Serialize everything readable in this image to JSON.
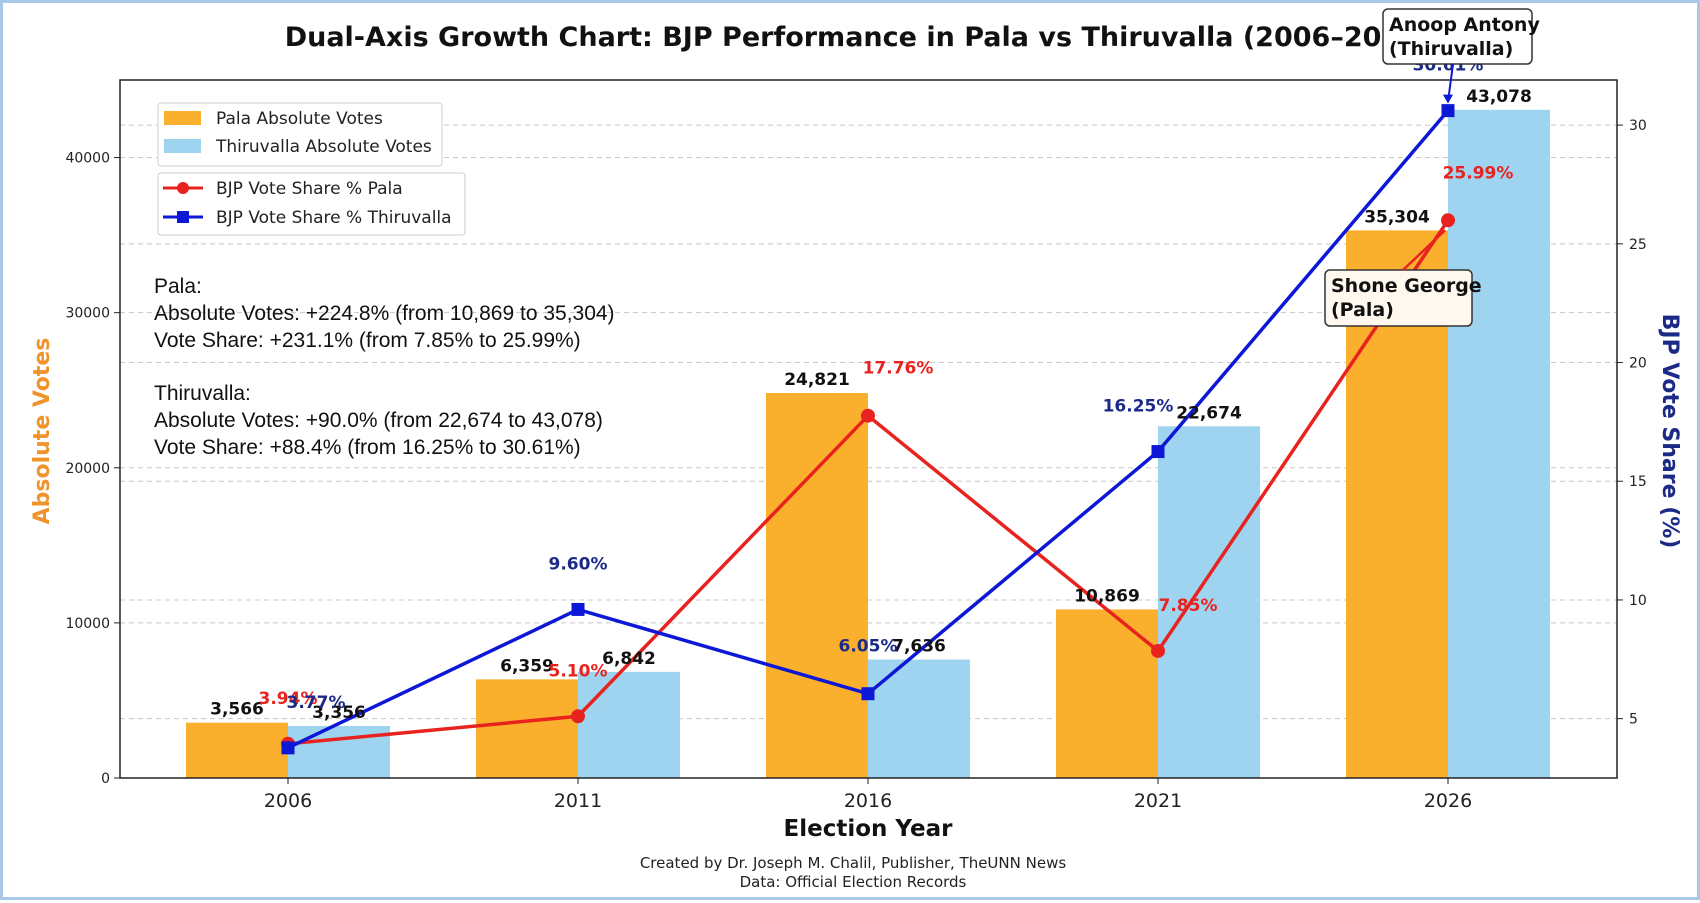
{
  "chart_data": {
    "type": "bar",
    "title": "Dual-Axis Growth Chart: BJP Performance in Pala vs Thiruvalla (2006–2026)",
    "xlabel": "Election Year",
    "ylabel": "Absolute Votes",
    "ylabel_right": "BJP Vote Share (%)",
    "categories": [
      "2006",
      "2011",
      "2016",
      "2021",
      "2026"
    ],
    "ylim": [
      0,
      45000
    ],
    "ylim_right": [
      2.5,
      31.9
    ],
    "yticks": [
      "0",
      "10000",
      "20000",
      "30000",
      "40000"
    ],
    "yticks_values": [
      0,
      10000,
      20000,
      30000,
      40000
    ],
    "yticks_right": [
      "5",
      "10",
      "15",
      "20",
      "25",
      "30"
    ],
    "yticks_right_values": [
      5,
      10,
      15,
      20,
      25,
      30
    ],
    "grid": "horizontal dashed",
    "series": [
      {
        "name": "Pala Absolute Votes",
        "kind": "bar",
        "color": "#fbb02d",
        "values": [
          3566,
          6359,
          24821,
          10869,
          35304
        ],
        "labels": [
          "3,566",
          "6,359",
          "24,821",
          "10,869",
          "35,304"
        ]
      },
      {
        "name": "Thiruvalla Absolute Votes",
        "kind": "bar",
        "color": "#9ed4ef",
        "values": [
          3356,
          6842,
          7636,
          22674,
          43078
        ],
        "labels": [
          "3,356",
          "6,842",
          "7,636",
          "22,674",
          "43,078"
        ]
      },
      {
        "name": "BJP Vote Share % Pala",
        "kind": "line",
        "axis": "right",
        "color": "#e8231f",
        "marker": "circle",
        "values": [
          3.94,
          5.1,
          17.76,
          7.85,
          25.99
        ],
        "labels": [
          "3.94%",
          "5.10%",
          "17.76%",
          "7.85%",
          "25.99%"
        ]
      },
      {
        "name": "BJP Vote Share % Thiruvalla",
        "kind": "line",
        "axis": "right",
        "color": "#0d17d6",
        "marker": "square",
        "values": [
          3.77,
          9.6,
          6.05,
          16.25,
          30.61
        ],
        "labels": [
          "3.77%",
          "9.60%",
          "6.05%",
          "16.25%",
          "30.61%"
        ]
      }
    ],
    "legend_position": "top-left",
    "summary": [
      "Pala:",
      "Absolute Votes: +224.8% (from 10,869 to 35,304)",
      "Vote Share: +231.1% (from 7.85% to 25.99%)",
      "Thiruvalla:",
      "Absolute Votes: +90.0% (from 22,674 to 43,078)",
      "Vote Share: +88.4% (from 16.25% to 30.61%)"
    ],
    "annotations": [
      {
        "lines": [
          "Shone George",
          "(Pala)"
        ],
        "target_series": 2,
        "target_index": 4
      },
      {
        "lines": [
          "Anoop Antony",
          "(Thiruvalla)"
        ],
        "target_series": 3,
        "target_index": 4
      }
    ]
  },
  "footer": {
    "credit": "Created by Dr. Joseph M. Chalil, Publisher, TheUNN News",
    "source": "Data: Official Election Records"
  },
  "colors": {
    "pala": "#fbb02d",
    "thiruvalla": "#9ed4ef",
    "pala_line": "#e8231f",
    "thiruvalla_line": "#0d17d6",
    "left_axis_label": "#f0932b",
    "right_axis_label": "#1b2a86"
  }
}
